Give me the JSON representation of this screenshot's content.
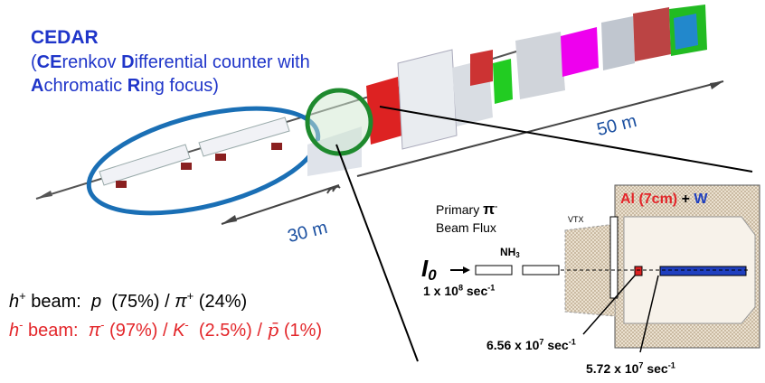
{
  "cedar": {
    "title": "CEDAR",
    "name": [
      "(",
      "CE",
      "renkov ",
      "D",
      "ifferential counter with",
      "A",
      "chromatic ",
      "R",
      "ing focus)"
    ]
  },
  "distances": [
    "50 m",
    "30 m"
  ],
  "beam": {
    "label": [
      "Primary",
      "π",
      "-",
      "Beam Flux"
    ],
    "intensity": [
      "I",
      "0"
    ],
    "flux": [
      "1 x 10",
      "8",
      " sec",
      "-1"
    ]
  },
  "target": {
    "material": [
      "NH",
      "3"
    ]
  },
  "vtx": "VTX",
  "nuclear_target": [
    "Al (7cm)",
    "+ ",
    "W"
  ],
  "fluxes": [
    [
      "6.56 x 10",
      "7",
      " sec",
      "-1"
    ],
    [
      "5.72 x 10",
      "7",
      " sec",
      "-1"
    ]
  ],
  "composition": {
    "positive": [
      "h",
      "+",
      " beam:  ",
      "p",
      "  (75%) / ",
      "π",
      "+",
      " (24%)"
    ],
    "negative": [
      "h",
      "-",
      " beam:  ",
      "π",
      "-",
      " (97%) / ",
      "K",
      "-",
      "  (2.5%) / ",
      "p̄",
      " (1%)"
    ]
  }
}
